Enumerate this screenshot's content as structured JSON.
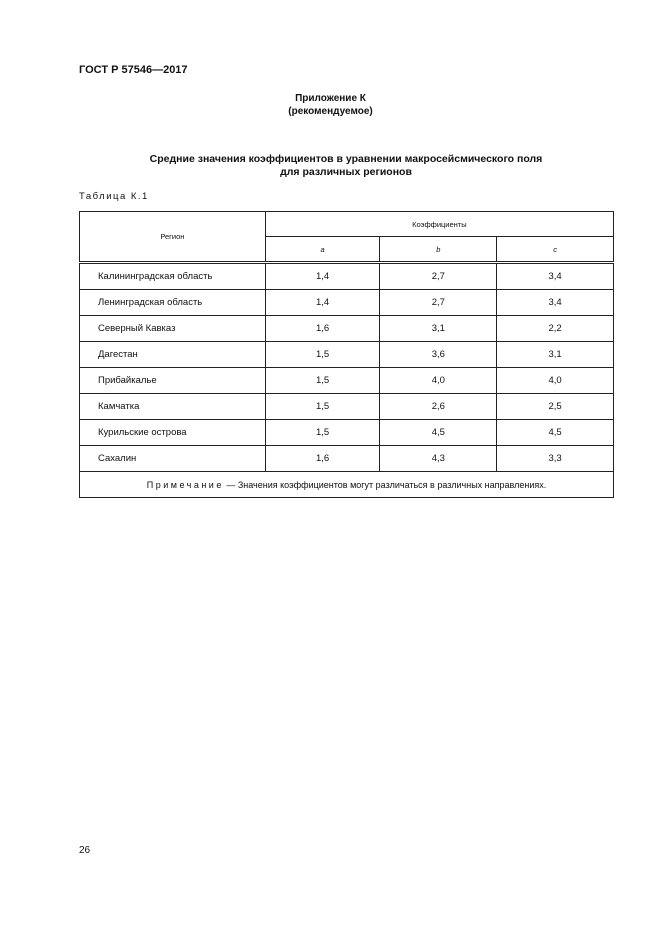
{
  "header": {
    "doc_code": "ГОСТ Р 57546—2017"
  },
  "appendix": {
    "title": "Приложение К",
    "subtitle": "(рекомендуемое)"
  },
  "section_title": {
    "line1": "Средние значения коэффициентов в уравнении макросейсмического поля",
    "line2": "для различных регионов"
  },
  "table": {
    "label": "Таблица К.1",
    "headers": {
      "region": "Регион",
      "group": "Коэффициенты",
      "a": "a",
      "b": "b",
      "c": "c"
    },
    "rows": [
      {
        "region": "Калининградская область",
        "a": "1,4",
        "b": "2,7",
        "c": "3,4"
      },
      {
        "region": "Ленинградская область",
        "a": "1,4",
        "b": "2,7",
        "c": "3,4"
      },
      {
        "region": "Северный Кавказ",
        "a": "1,6",
        "b": "3,1",
        "c": "2,2"
      },
      {
        "region": "Дагестан",
        "a": "1,5",
        "b": "3,6",
        "c": "3,1"
      },
      {
        "region": "Прибайкалье",
        "a": "1,5",
        "b": "4,0",
        "c": "4,0"
      },
      {
        "region": "Камчатка",
        "a": "1,5",
        "b": "2,6",
        "c": "2,5"
      },
      {
        "region": "Курильские острова",
        "a": "1,5",
        "b": "4,5",
        "c": "4,5"
      },
      {
        "region": "Сахалин",
        "a": "1,6",
        "b": "4,3",
        "c": "3,3"
      }
    ],
    "note_label": "Примечание",
    "note_text": " — Значения коэффициентов могут различаться в различных направлениях."
  },
  "footer": {
    "page_number": "26"
  }
}
